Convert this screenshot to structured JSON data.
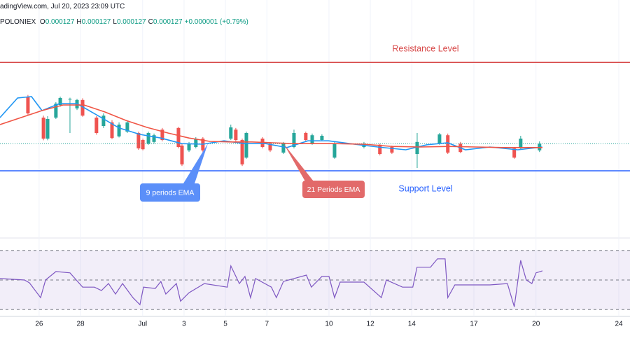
{
  "header": {
    "source": "adingView.com, Jul 20, 2023 23:09 UTC",
    "symbol": "POLONIEX",
    "fields": [
      {
        "label": "O",
        "value": "0.000127"
      },
      {
        "label": "H",
        "value": "0.000127"
      },
      {
        "label": "L",
        "value": "0.000127"
      },
      {
        "label": "C",
        "value": "0.000127"
      }
    ],
    "change": "+0.000001 (+0.79%)"
  },
  "chart_data": [
    {
      "type": "candlestick",
      "up_color": "#26a69a",
      "down_color": "#ef5350",
      "grid": true,
      "xlim": [
        24.11,
        54.54
      ],
      "ylim": [
        0.00011075,
        0.00015075
      ],
      "xticks": [
        26,
        28,
        {
          "value": 31,
          "label": "Jul"
        },
        {
          "value": 33,
          "label": "3"
        },
        {
          "value": 35,
          "label": "5"
        },
        {
          "value": 37,
          "label": "7"
        },
        {
          "value": 40,
          "label": "10"
        },
        {
          "value": 42,
          "label": "12"
        },
        {
          "value": 44,
          "label": "14"
        },
        {
          "value": 47,
          "label": "17"
        },
        {
          "value": 50,
          "label": "20"
        },
        {
          "value": 54,
          "label": "24"
        }
      ],
      "x": [
        25.46,
        26.21,
        26.41,
        26.81,
        27.02,
        27.49,
        27.83,
        28.1,
        28.77,
        29.11,
        29.52,
        29.86,
        30.26,
        30.8,
        31.01,
        31.28,
        31.55,
        31.95,
        32.73,
        32.9,
        33.24,
        33.57,
        33.91,
        35.26,
        35.5,
        35.81,
        36.01,
        36.79,
        37.16,
        37.8,
        38.31,
        38.88,
        39.19,
        39.66,
        40.27,
        41.69,
        42.46,
        43.04,
        44.26,
        45.34,
        45.74,
        46.35,
        48.95,
        49.26,
        50.17
      ],
      "open": [
        0.000136,
        0.00013225,
        0.0001285,
        0.00013225,
        0.0001345,
        0.0001356,
        0.0001339,
        0.0001354,
        0.00013225,
        0.00013075,
        0.0001314,
        0.0001289,
        0.00012975,
        0.0001295,
        0.00012825,
        0.0001276,
        0.0001279,
        0.0001301,
        0.0001304,
        0.00012725,
        0.0001264,
        0.000127,
        0.0001285,
        0.0001285,
        0.0001301,
        0.00012825,
        0.0001251,
        0.0001285,
        0.0001276,
        0.000126,
        0.000127,
        0.0001295,
        0.0001276,
        0.00012825,
        0.0001251,
        0.000127,
        0.0001274,
        0.000127,
        0.00012575,
        0.0001276,
        0.0001291,
        0.0001276,
        0.00012675,
        0.00012675,
        0.0001264
      ],
      "high": [
        0.0001363,
        0.0001326,
        0.0001325,
        0.000135,
        0.000136,
        0.0001358,
        0.0001356,
        0.0001357,
        0.0001325,
        0.000133,
        0.0001318,
        0.0001314,
        0.0001316,
        0.00012975,
        0.0001285,
        0.00012975,
        0.0001294,
        0.0001304,
        0.0001306,
        0.0001275,
        0.0001279,
        0.00012875,
        0.00012875,
        0.000131,
        0.0001304,
        0.0001285,
        0.00012975,
        0.00012875,
        0.0001279,
        0.0001279,
        0.0001301,
        0.00012975,
        0.0001294,
        0.00012925,
        0.0001279,
        0.0001279,
        0.0001276,
        0.00012725,
        0.0001295,
        0.0001295,
        0.0001294,
        0.0001279,
        0.000127,
        0.000129,
        0.000128
      ],
      "low": [
        0.0001327,
        0.0001282,
        0.0001282,
        0.000132,
        0.0001342,
        0.0001295,
        0.0001336,
        0.0001324,
        0.0001292,
        0.0001304,
        0.0001284,
        0.0001287,
        0.0001295,
        0.0001265,
        0.0001264,
        0.0001274,
        0.0001276,
        0.000128,
        0.00012675,
        0.0001236,
        0.0001261,
        0.00012675,
        0.0001261,
        0.00012825,
        0.000128,
        0.0001236,
        0.0001249,
        0.00012675,
        0.0001261,
        0.00012575,
        0.00012675,
        0.000128,
        0.0001274,
        0.000128,
        0.0001249,
        0.00012675,
        0.0001255,
        0.00012575,
        0.00012325,
        0.0001274,
        0.00012575,
        0.0001259,
        0.0001249,
        0.0001265,
        0.0001261
      ],
      "close": [
        0.000133,
        0.0001285,
        0.000132,
        0.00013475,
        0.00013575,
        0.0001356,
        0.0001354,
        0.0001326,
        0.0001295,
        0.0001326,
        0.0001286,
        0.000131,
        0.0001314,
        0.00012675,
        0.0001266,
        0.0001295,
        0.0001291,
        0.00012825,
        0.000127,
        0.0001239,
        0.0001276,
        0.0001285,
        0.0001264,
        0.0001305,
        0.00012825,
        0.0001239,
        0.0001295,
        0.000127,
        0.0001264,
        0.0001276,
        0.0001295,
        0.00012825,
        0.0001291,
        0.000129,
        0.0001276,
        0.0001276,
        0.00012575,
        0.000126,
        0.0001279,
        0.00012925,
        0.000126,
        0.0001261,
        0.0001251,
        0.0001285,
        0.0001276
      ],
      "series": [
        {
          "name": "9 periods EMA",
          "color": "#2196f3",
          "x": [
            24.11,
            24.96,
            25.63,
            26.14,
            26.98,
            27.83,
            28.84,
            29.86,
            30.87,
            31.88,
            32.9,
            33.91,
            34.93,
            35.94,
            36.95,
            37.97,
            38.98,
            39.99,
            41.01,
            42.36,
            43.71,
            44.73,
            45.74,
            46.59,
            47.77,
            49.12,
            50.3
          ],
          "values": [
            0.00013225,
            0.00013575,
            0.000136,
            0.0001335,
            0.00013475,
            0.00013475,
            0.0001326,
            0.0001304,
            0.00012925,
            0.0001286,
            0.0001276,
            0.0001275,
            0.0001281,
            0.0001276,
            0.0001276,
            0.0001269,
            0.0001281,
            0.0001281,
            0.0001276,
            0.000127,
            0.0001265,
            0.0001274,
            0.00012775,
            0.0001265,
            0.000127,
            0.0001265,
            0.000127
          ]
        },
        {
          "name": "21 Periods EMA",
          "color": "#f05545",
          "x": [
            24.11,
            25.12,
            26.14,
            27.15,
            28.17,
            29.18,
            30.19,
            31.21,
            32.22,
            33.24,
            34.25,
            35.26,
            36.28,
            37.29,
            38.31,
            39.32,
            40.33,
            41.69,
            43.04,
            44.39,
            45.74,
            47.09,
            48.45,
            50.31
          ],
          "values": [
            0.000131,
            0.00013225,
            0.0001335,
            0.0001345,
            0.0001345,
            0.00013325,
            0.00013175,
            0.0001305,
            0.0001295,
            0.0001286,
            0.000128,
            0.0001279,
            0.0001279,
            0.00012775,
            0.0001276,
            0.0001276,
            0.0001276,
            0.0001275,
            0.0001271,
            0.000127,
            0.0001271,
            0.000127,
            0.0001269,
            0.0001269
          ]
        }
      ],
      "levels": [
        {
          "name": "Resistance Level",
          "value": 0.0001421,
          "color": "#d84a4a"
        },
        {
          "name": "Support Level",
          "value": 0.00012275,
          "color": "#2962ff"
        }
      ]
    },
    {
      "type": "line",
      "color": "#7e57c2",
      "xlim": [
        24.11,
        54.54
      ],
      "ylim": [
        24,
        76
      ],
      "levels": [
        30,
        50,
        70
      ],
      "x": [
        24.11,
        25.29,
        25.53,
        26.07,
        26.31,
        26.81,
        27.49,
        28.1,
        28.67,
        29.01,
        29.35,
        29.69,
        30.03,
        30.53,
        30.87,
        31.04,
        31.61,
        31.88,
        32.12,
        32.63,
        32.83,
        33.24,
        33.98,
        35.09,
        35.26,
        35.67,
        35.94,
        36.21,
        36.45,
        37.22,
        37.46,
        37.8,
        38.91,
        39.15,
        39.66,
        40.0,
        40.27,
        40.54,
        41.69,
        42.53,
        42.77,
        43.55,
        44.05,
        44.25,
        44.9,
        45.24,
        45.61,
        45.74,
        46.08,
        47.77,
        48.62,
        48.95,
        49.26,
        49.53,
        49.8,
        50.0,
        50.31
      ],
      "values": [
        51.0,
        50,
        48.1,
        38.1,
        50,
        55.7,
        54.8,
        45.2,
        45.2,
        42.9,
        47.6,
        40.5,
        47.6,
        38.1,
        33.3,
        45.2,
        44.3,
        49.0,
        40.5,
        47.6,
        35.7,
        41.4,
        47.6,
        45.2,
        59.5,
        47.6,
        52.4,
        38.1,
        51.0,
        45.2,
        38.1,
        49.0,
        53.3,
        45.2,
        52.4,
        52.4,
        38.1,
        48.6,
        48.6,
        38.1,
        50,
        45.2,
        45.2,
        58.6,
        58.6,
        64.3,
        64.3,
        38.1,
        46.7,
        46.7,
        47.6,
        31.9,
        63.3,
        50,
        47.6,
        54.8,
        56.2
      ]
    }
  ]
}
